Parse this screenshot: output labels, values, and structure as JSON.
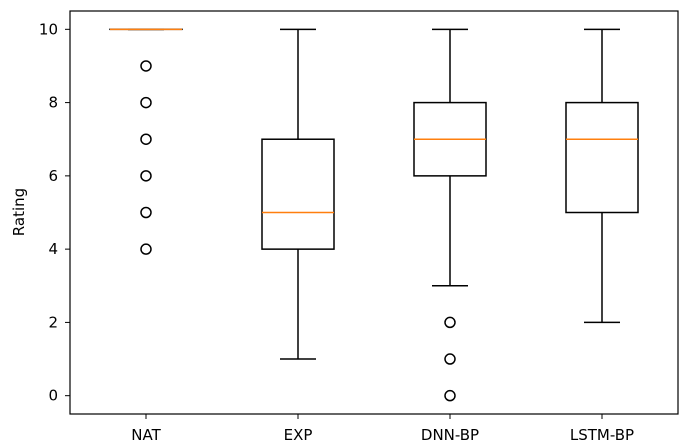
{
  "chart_data": {
    "type": "box",
    "ylabel": "Rating",
    "xlabel": "",
    "title": "",
    "ylim": [
      -0.5,
      10.5
    ],
    "yticks": [
      0,
      2,
      4,
      6,
      8,
      10
    ],
    "categories": [
      "NAT",
      "EXP",
      "DNN-BP",
      "LSTM-BP"
    ],
    "boxes": [
      {
        "category": "NAT",
        "whisker_low": 10,
        "q1": 10,
        "median": 10,
        "q3": 10,
        "whisker_high": 10,
        "outliers": [
          9,
          8,
          7,
          6,
          5,
          4
        ]
      },
      {
        "category": "EXP",
        "whisker_low": 1,
        "q1": 4,
        "median": 5,
        "q3": 7,
        "whisker_high": 10,
        "outliers": []
      },
      {
        "category": "DNN-BP",
        "whisker_low": 3,
        "q1": 6,
        "median": 7,
        "q3": 8,
        "whisker_high": 10,
        "outliers": [
          2,
          1,
          0
        ]
      },
      {
        "category": "LSTM-BP",
        "whisker_low": 2,
        "q1": 5,
        "median": 7,
        "q3": 8,
        "whisker_high": 10,
        "outliers": []
      }
    ],
    "grid": false,
    "colors": {
      "box": "#000000",
      "median": "#ff7f0e",
      "outlier": "#000000"
    }
  }
}
